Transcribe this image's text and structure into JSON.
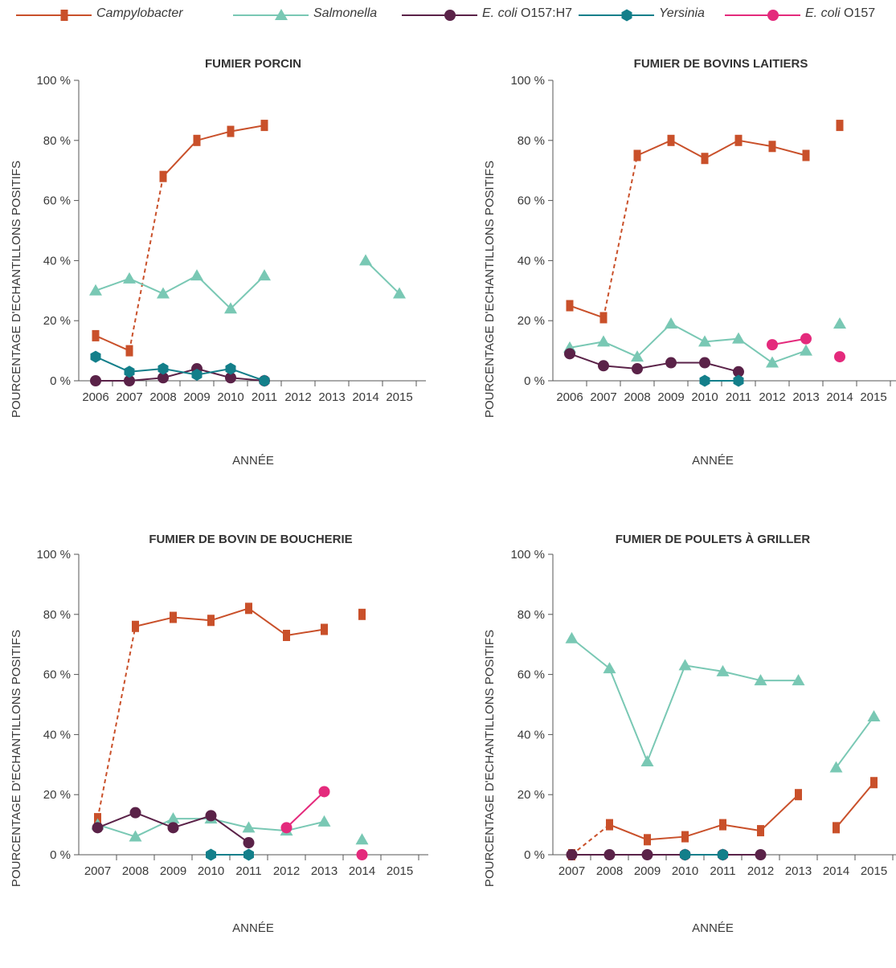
{
  "colors": {
    "campylobacter": "#c9502a",
    "salmonella": "#79c8b4",
    "ecoli_h7": "#5a2248",
    "yersinia": "#137f8a",
    "ecoli_o157": "#e42a7c",
    "axis": "#555555"
  },
  "legend": [
    {
      "key": "campylobacter",
      "label": "Campylobacter",
      "italic": "Campylobacter",
      "rest": "",
      "marker": "square"
    },
    {
      "key": "salmonella",
      "label": "Salmonella",
      "italic": "Salmonella",
      "rest": "",
      "marker": "triangle"
    },
    {
      "key": "ecoli_h7",
      "label": "E. coli O157:H7",
      "italic": "E. coli",
      "rest": " O157:H7",
      "marker": "circle"
    },
    {
      "key": "yersinia",
      "label": "Yersinia",
      "italic": "Yersinia",
      "rest": "",
      "marker": "hexagon"
    },
    {
      "key": "ecoli_o157",
      "label": "E. coli O157",
      "italic": "E. coli",
      "rest": " O157",
      "marker": "circle"
    }
  ],
  "chart_data": [
    {
      "type": "line",
      "title": "FUMIER PORCIN",
      "xlabel": "ANNÉE",
      "ylabel": "POURCENTAGE  D'ECHANTILLONS POSITIFS",
      "categories": [
        "2006",
        "2007",
        "2008",
        "2009",
        "2010",
        "2011",
        "2012",
        "2013",
        "2014",
        "2015"
      ],
      "yticks": [
        "0 %",
        "20 %",
        "40 %",
        "60 %",
        "80 %",
        "100 %"
      ],
      "ylim": [
        0,
        100
      ],
      "series": [
        {
          "name": "Campylobacter",
          "key": "campylobacter",
          "marker": "square",
          "points": [
            [
              2006,
              15
            ],
            [
              2007,
              10
            ],
            [
              2008,
              68
            ],
            [
              2009,
              80
            ],
            [
              2010,
              83
            ],
            [
              2011,
              85
            ]
          ],
          "dashed_segments": [
            1
          ]
        },
        {
          "name": "Salmonella",
          "key": "salmonella",
          "marker": "triangle",
          "points": [
            [
              2006,
              30
            ],
            [
              2007,
              34
            ],
            [
              2008,
              29
            ],
            [
              2009,
              35
            ],
            [
              2010,
              24
            ],
            [
              2011,
              35
            ],
            [
              2014,
              40
            ],
            [
              2015,
              29
            ]
          ],
          "breaks": [
            5
          ]
        },
        {
          "name": "E. coli O157:H7",
          "key": "ecoli_h7",
          "marker": "circle",
          "points": [
            [
              2006,
              0
            ],
            [
              2007,
              0
            ],
            [
              2008,
              1
            ],
            [
              2009,
              4
            ],
            [
              2010,
              1
            ],
            [
              2011,
              0
            ]
          ]
        },
        {
          "name": "Yersinia",
          "key": "yersinia",
          "marker": "hexagon",
          "points": [
            [
              2006,
              8
            ],
            [
              2007,
              3
            ],
            [
              2008,
              4
            ],
            [
              2009,
              2
            ],
            [
              2010,
              4
            ],
            [
              2011,
              0
            ]
          ]
        }
      ]
    },
    {
      "type": "line",
      "title": "FUMIER DE BOVINS LAITIERS",
      "xlabel": "ANNÉE",
      "ylabel": "POURCENTAGE  D'ECHANTILLONS POSITIFS",
      "categories": [
        "2006",
        "2007",
        "2008",
        "2009",
        "2010",
        "2011",
        "2012",
        "2013",
        "2014",
        "2015"
      ],
      "yticks": [
        "0 %",
        "20 %",
        "40 %",
        "60 %",
        "80 %",
        "100 %"
      ],
      "ylim": [
        0,
        100
      ],
      "series": [
        {
          "name": "Campylobacter",
          "key": "campylobacter",
          "marker": "square",
          "points": [
            [
              2006,
              25
            ],
            [
              2007,
              21
            ],
            [
              2008,
              75
            ],
            [
              2009,
              80
            ],
            [
              2010,
              74
            ],
            [
              2011,
              80
            ],
            [
              2012,
              78
            ],
            [
              2013,
              75
            ],
            [
              2014,
              85
            ]
          ],
          "dashed_segments": [
            1
          ],
          "breaks": [
            7
          ]
        },
        {
          "name": "Salmonella",
          "key": "salmonella",
          "marker": "triangle",
          "points": [
            [
              2006,
              11
            ],
            [
              2007,
              13
            ],
            [
              2008,
              8
            ],
            [
              2009,
              19
            ],
            [
              2010,
              13
            ],
            [
              2011,
              14
            ],
            [
              2012,
              6
            ],
            [
              2013,
              10
            ],
            [
              2014,
              19
            ]
          ],
          "breaks": [
            7
          ]
        },
        {
          "name": "E. coli O157:H7",
          "key": "ecoli_h7",
          "marker": "circle",
          "points": [
            [
              2006,
              9
            ],
            [
              2007,
              5
            ],
            [
              2008,
              4
            ],
            [
              2009,
              6
            ],
            [
              2010,
              6
            ],
            [
              2011,
              3
            ]
          ]
        },
        {
          "name": "Yersinia",
          "key": "yersinia",
          "marker": "hexagon",
          "points": [
            [
              2010,
              0
            ],
            [
              2011,
              0
            ]
          ]
        },
        {
          "name": "E. coli O157",
          "key": "ecoli_o157",
          "marker": "circle",
          "points": [
            [
              2012,
              12
            ],
            [
              2013,
              14
            ],
            [
              2014,
              8
            ]
          ],
          "breaks": [
            1
          ]
        }
      ]
    },
    {
      "type": "line",
      "title": "FUMIER DE BOVIN DE BOUCHERIE",
      "xlabel": "ANNÉE",
      "ylabel": "POURCENTAGE  D'ECHANTILLONS POSITIFS",
      "categories": [
        "2007",
        "2008",
        "2009",
        "2010",
        "2011",
        "2012",
        "2013",
        "2014",
        "2015"
      ],
      "yticks": [
        "0 %",
        "20 %",
        "40 %",
        "60 %",
        "80 %",
        "100 %"
      ],
      "ylim": [
        0,
        100
      ],
      "series": [
        {
          "name": "Campylobacter",
          "key": "campylobacter",
          "marker": "square",
          "points": [
            [
              2007,
              12
            ],
            [
              2008,
              76
            ],
            [
              2009,
              79
            ],
            [
              2010,
              78
            ],
            [
              2011,
              82
            ],
            [
              2012,
              73
            ],
            [
              2013,
              75
            ],
            [
              2014,
              80
            ]
          ],
          "dashed_segments": [
            0
          ],
          "breaks": [
            6
          ]
        },
        {
          "name": "Salmonella",
          "key": "salmonella",
          "marker": "triangle",
          "points": [
            [
              2007,
              10
            ],
            [
              2008,
              6
            ],
            [
              2009,
              12
            ],
            [
              2010,
              12
            ],
            [
              2011,
              9
            ],
            [
              2012,
              8
            ],
            [
              2013,
              11
            ],
            [
              2014,
              5
            ]
          ],
          "breaks": [
            6
          ]
        },
        {
          "name": "E. coli O157:H7",
          "key": "ecoli_h7",
          "marker": "circle",
          "points": [
            [
              2007,
              9
            ],
            [
              2008,
              14
            ],
            [
              2009,
              9
            ],
            [
              2010,
              13
            ],
            [
              2011,
              4
            ]
          ]
        },
        {
          "name": "Yersinia",
          "key": "yersinia",
          "marker": "hexagon",
          "points": [
            [
              2010,
              0
            ],
            [
              2011,
              0
            ]
          ]
        },
        {
          "name": "E. coli O157",
          "key": "ecoli_o157",
          "marker": "circle",
          "points": [
            [
              2012,
              9
            ],
            [
              2013,
              21
            ],
            [
              2014,
              0
            ]
          ],
          "breaks": [
            1
          ]
        }
      ]
    },
    {
      "type": "line",
      "title": "FUMIER DE POULETS À GRILLER",
      "xlabel": "ANNÉE",
      "ylabel": "POURCENTAGE  D'ECHANTILLONS POSITIFS",
      "categories": [
        "2007",
        "2008",
        "2009",
        "2010",
        "2011",
        "2012",
        "2013",
        "2014",
        "2015"
      ],
      "yticks": [
        "0 %",
        "20 %",
        "40 %",
        "60 %",
        "80 %",
        "100 %"
      ],
      "ylim": [
        0,
        100
      ],
      "series": [
        {
          "name": "Salmonella",
          "key": "salmonella",
          "marker": "triangle",
          "points": [
            [
              2007,
              72
            ],
            [
              2008,
              62
            ],
            [
              2009,
              31
            ],
            [
              2010,
              63
            ],
            [
              2011,
              61
            ],
            [
              2012,
              58
            ],
            [
              2013,
              58
            ],
            [
              2014,
              29
            ],
            [
              2015,
              46
            ]
          ],
          "breaks": [
            6
          ]
        },
        {
          "name": "Campylobacter",
          "key": "campylobacter",
          "marker": "square",
          "points": [
            [
              2007,
              0
            ],
            [
              2008,
              10
            ],
            [
              2009,
              5
            ],
            [
              2010,
              6
            ],
            [
              2011,
              10
            ],
            [
              2012,
              8
            ],
            [
              2013,
              20
            ],
            [
              2014,
              9
            ],
            [
              2015,
              24
            ]
          ],
          "dashed_segments": [
            0
          ],
          "breaks": [
            6
          ]
        },
        {
          "name": "E. coli O157:H7",
          "key": "ecoli_h7",
          "marker": "circle",
          "points": [
            [
              2007,
              0
            ],
            [
              2008,
              0
            ],
            [
              2009,
              0
            ],
            [
              2010,
              0
            ],
            [
              2011,
              0
            ],
            [
              2012,
              0
            ]
          ]
        },
        {
          "name": "Yersinia",
          "key": "yersinia",
          "marker": "hexagon",
          "points": [
            [
              2010,
              0
            ],
            [
              2011,
              0
            ]
          ]
        }
      ]
    }
  ]
}
